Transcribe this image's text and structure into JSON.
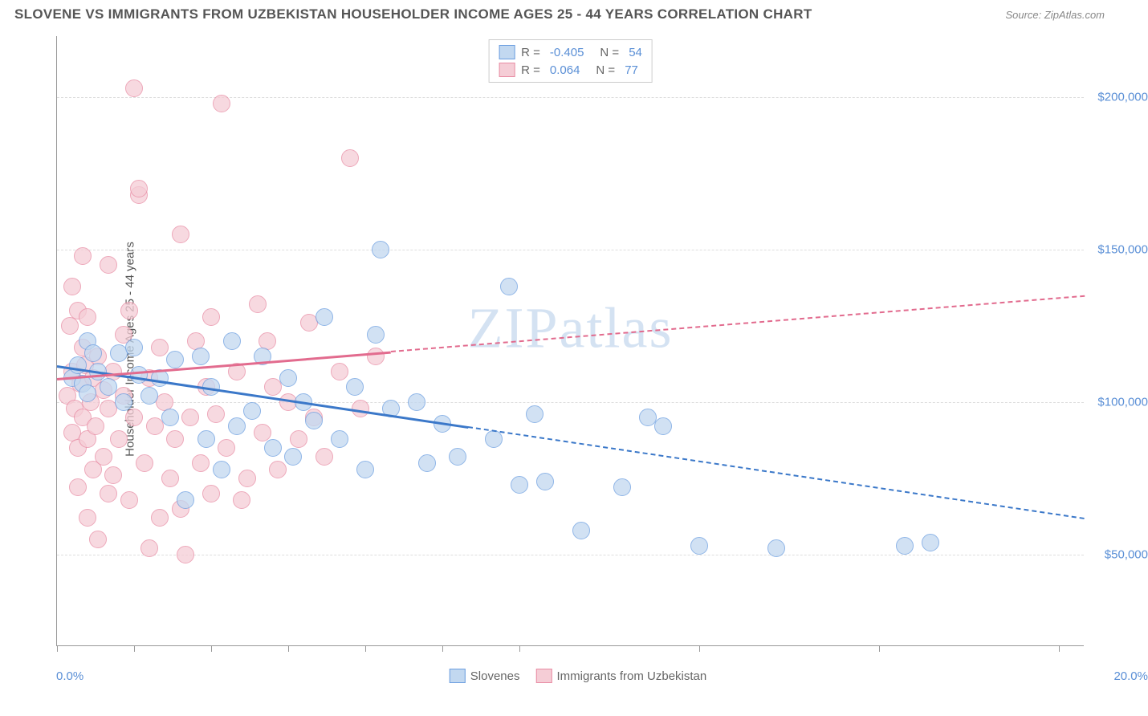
{
  "title": "SLOVENE VS IMMIGRANTS FROM UZBEKISTAN HOUSEHOLDER INCOME AGES 25 - 44 YEARS CORRELATION CHART",
  "source": "Source: ZipAtlas.com",
  "watermark": "ZIPatlas",
  "chart": {
    "type": "scatter",
    "background_color": "#ffffff",
    "grid_color": "#dddddd",
    "axis_color": "#999999",
    "label_color": "#5a8fd6",
    "y_axis_title": "Householder Income Ages 25 - 44 years",
    "x_axis": {
      "min": 0.0,
      "max": 20.0,
      "label_min": "0.0%",
      "label_max": "20.0%",
      "tick_positions_pct": [
        0,
        7.5,
        15,
        22.5,
        30,
        37.5,
        45,
        62.5,
        80,
        97.5
      ]
    },
    "y_axis": {
      "min": 20000,
      "max": 220000,
      "ticks": [
        {
          "value": 50000,
          "label": "$50,000"
        },
        {
          "value": 100000,
          "label": "$100,000"
        },
        {
          "value": 150000,
          "label": "$150,000"
        },
        {
          "value": 200000,
          "label": "$200,000"
        }
      ]
    },
    "series": [
      {
        "name": "Slovenes",
        "fill_color": "#c2d8f0",
        "stroke_color": "#6a9de0",
        "marker_radius": 11,
        "marker_opacity": 0.75,
        "R": "-0.405",
        "N": "54",
        "trend": {
          "x1": 0.0,
          "y1": 112000,
          "x2": 20.0,
          "y2": 62000,
          "solid_until_x": 8.0,
          "color": "#3b78c9"
        },
        "points": [
          {
            "x": 0.3,
            "y": 108000
          },
          {
            "x": 0.4,
            "y": 112000
          },
          {
            "x": 0.5,
            "y": 106000
          },
          {
            "x": 0.6,
            "y": 120000
          },
          {
            "x": 0.6,
            "y": 103000
          },
          {
            "x": 0.7,
            "y": 116000
          },
          {
            "x": 0.8,
            "y": 110000
          },
          {
            "x": 1.0,
            "y": 105000
          },
          {
            "x": 1.2,
            "y": 116000
          },
          {
            "x": 1.3,
            "y": 100000
          },
          {
            "x": 1.5,
            "y": 118000
          },
          {
            "x": 1.6,
            "y": 109000
          },
          {
            "x": 1.8,
            "y": 102000
          },
          {
            "x": 2.0,
            "y": 108000
          },
          {
            "x": 2.2,
            "y": 95000
          },
          {
            "x": 2.3,
            "y": 114000
          },
          {
            "x": 2.5,
            "y": 68000
          },
          {
            "x": 2.8,
            "y": 115000
          },
          {
            "x": 2.9,
            "y": 88000
          },
          {
            "x": 3.0,
            "y": 105000
          },
          {
            "x": 3.2,
            "y": 78000
          },
          {
            "x": 3.4,
            "y": 120000
          },
          {
            "x": 3.5,
            "y": 92000
          },
          {
            "x": 3.8,
            "y": 97000
          },
          {
            "x": 4.0,
            "y": 115000
          },
          {
            "x": 4.2,
            "y": 85000
          },
          {
            "x": 4.5,
            "y": 108000
          },
          {
            "x": 4.6,
            "y": 82000
          },
          {
            "x": 4.8,
            "y": 100000
          },
          {
            "x": 5.0,
            "y": 94000
          },
          {
            "x": 5.2,
            "y": 128000
          },
          {
            "x": 5.5,
            "y": 88000
          },
          {
            "x": 5.8,
            "y": 105000
          },
          {
            "x": 6.0,
            "y": 78000
          },
          {
            "x": 6.2,
            "y": 122000
          },
          {
            "x": 6.3,
            "y": 150000
          },
          {
            "x": 6.5,
            "y": 98000
          },
          {
            "x": 7.0,
            "y": 100000
          },
          {
            "x": 7.2,
            "y": 80000
          },
          {
            "x": 7.5,
            "y": 93000
          },
          {
            "x": 7.8,
            "y": 82000
          },
          {
            "x": 8.5,
            "y": 88000
          },
          {
            "x": 8.8,
            "y": 138000
          },
          {
            "x": 9.0,
            "y": 73000
          },
          {
            "x": 9.3,
            "y": 96000
          },
          {
            "x": 9.5,
            "y": 74000
          },
          {
            "x": 10.2,
            "y": 58000
          },
          {
            "x": 11.0,
            "y": 72000
          },
          {
            "x": 11.5,
            "y": 95000
          },
          {
            "x": 11.8,
            "y": 92000
          },
          {
            "x": 12.5,
            "y": 53000
          },
          {
            "x": 14.0,
            "y": 52000
          },
          {
            "x": 16.5,
            "y": 53000
          },
          {
            "x": 17.0,
            "y": 54000
          }
        ]
      },
      {
        "name": "Immigrants from Uzbekistan",
        "fill_color": "#f5cdd6",
        "stroke_color": "#e88ba3",
        "marker_radius": 11,
        "marker_opacity": 0.75,
        "R": "0.064",
        "N": "77",
        "trend": {
          "x1": 0.0,
          "y1": 108000,
          "x2": 20.0,
          "y2": 135000,
          "solid_until_x": 6.5,
          "color": "#e26b8e"
        },
        "points": [
          {
            "x": 0.2,
            "y": 102000
          },
          {
            "x": 0.25,
            "y": 125000
          },
          {
            "x": 0.3,
            "y": 90000
          },
          {
            "x": 0.3,
            "y": 110000
          },
          {
            "x": 0.35,
            "y": 98000
          },
          {
            "x": 0.4,
            "y": 130000
          },
          {
            "x": 0.4,
            "y": 85000
          },
          {
            "x": 0.45,
            "y": 106000
          },
          {
            "x": 0.5,
            "y": 118000
          },
          {
            "x": 0.5,
            "y": 95000
          },
          {
            "x": 0.55,
            "y": 112000
          },
          {
            "x": 0.6,
            "y": 88000
          },
          {
            "x": 0.6,
            "y": 128000
          },
          {
            "x": 0.65,
            "y": 100000
          },
          {
            "x": 0.7,
            "y": 108000
          },
          {
            "x": 0.7,
            "y": 78000
          },
          {
            "x": 0.75,
            "y": 92000
          },
          {
            "x": 0.8,
            "y": 115000
          },
          {
            "x": 0.8,
            "y": 55000
          },
          {
            "x": 0.9,
            "y": 104000
          },
          {
            "x": 0.9,
            "y": 82000
          },
          {
            "x": 1.0,
            "y": 145000
          },
          {
            "x": 1.0,
            "y": 98000
          },
          {
            "x": 1.1,
            "y": 110000
          },
          {
            "x": 1.1,
            "y": 76000
          },
          {
            "x": 1.2,
            "y": 88000
          },
          {
            "x": 1.3,
            "y": 102000
          },
          {
            "x": 1.3,
            "y": 122000
          },
          {
            "x": 1.4,
            "y": 68000
          },
          {
            "x": 1.5,
            "y": 203000
          },
          {
            "x": 1.5,
            "y": 95000
          },
          {
            "x": 1.6,
            "y": 168000
          },
          {
            "x": 1.6,
            "y": 170000
          },
          {
            "x": 1.7,
            "y": 80000
          },
          {
            "x": 1.8,
            "y": 108000
          },
          {
            "x": 1.8,
            "y": 52000
          },
          {
            "x": 1.9,
            "y": 92000
          },
          {
            "x": 2.0,
            "y": 62000
          },
          {
            "x": 2.1,
            "y": 100000
          },
          {
            "x": 2.2,
            "y": 75000
          },
          {
            "x": 2.3,
            "y": 88000
          },
          {
            "x": 2.4,
            "y": 155000
          },
          {
            "x": 2.5,
            "y": 50000
          },
          {
            "x": 2.6,
            "y": 95000
          },
          {
            "x": 2.7,
            "y": 120000
          },
          {
            "x": 2.8,
            "y": 80000
          },
          {
            "x": 2.9,
            "y": 105000
          },
          {
            "x": 3.0,
            "y": 70000
          },
          {
            "x": 3.1,
            "y": 96000
          },
          {
            "x": 3.2,
            "y": 198000
          },
          {
            "x": 3.3,
            "y": 85000
          },
          {
            "x": 3.5,
            "y": 110000
          },
          {
            "x": 3.7,
            "y": 75000
          },
          {
            "x": 3.9,
            "y": 132000
          },
          {
            "x": 4.0,
            "y": 90000
          },
          {
            "x": 4.1,
            "y": 120000
          },
          {
            "x": 4.3,
            "y": 78000
          },
          {
            "x": 4.5,
            "y": 100000
          },
          {
            "x": 4.7,
            "y": 88000
          },
          {
            "x": 4.9,
            "y": 126000
          },
          {
            "x": 5.0,
            "y": 95000
          },
          {
            "x": 5.2,
            "y": 82000
          },
          {
            "x": 5.5,
            "y": 110000
          },
          {
            "x": 5.7,
            "y": 180000
          },
          {
            "x": 5.9,
            "y": 98000
          },
          {
            "x": 6.2,
            "y": 115000
          },
          {
            "x": 0.3,
            "y": 138000
          },
          {
            "x": 0.5,
            "y": 148000
          },
          {
            "x": 0.4,
            "y": 72000
          },
          {
            "x": 0.6,
            "y": 62000
          },
          {
            "x": 1.0,
            "y": 70000
          },
          {
            "x": 1.4,
            "y": 130000
          },
          {
            "x": 2.0,
            "y": 118000
          },
          {
            "x": 2.4,
            "y": 65000
          },
          {
            "x": 3.0,
            "y": 128000
          },
          {
            "x": 3.6,
            "y": 68000
          },
          {
            "x": 4.2,
            "y": 105000
          }
        ]
      }
    ],
    "legend_top": {
      "rows": [
        {
          "swatch_fill": "#c2d8f0",
          "swatch_stroke": "#6a9de0",
          "r_label": "R =",
          "r_val": "-0.405",
          "n_label": "N =",
          "n_val": "54"
        },
        {
          "swatch_fill": "#f5cdd6",
          "swatch_stroke": "#e88ba3",
          "r_label": "R =",
          "r_val": " 0.064",
          "n_label": "N =",
          "n_val": "77"
        }
      ]
    },
    "legend_bottom": [
      {
        "swatch_fill": "#c2d8f0",
        "swatch_stroke": "#6a9de0",
        "label": "Slovenes"
      },
      {
        "swatch_fill": "#f5cdd6",
        "swatch_stroke": "#e88ba3",
        "label": "Immigrants from Uzbekistan"
      }
    ]
  }
}
